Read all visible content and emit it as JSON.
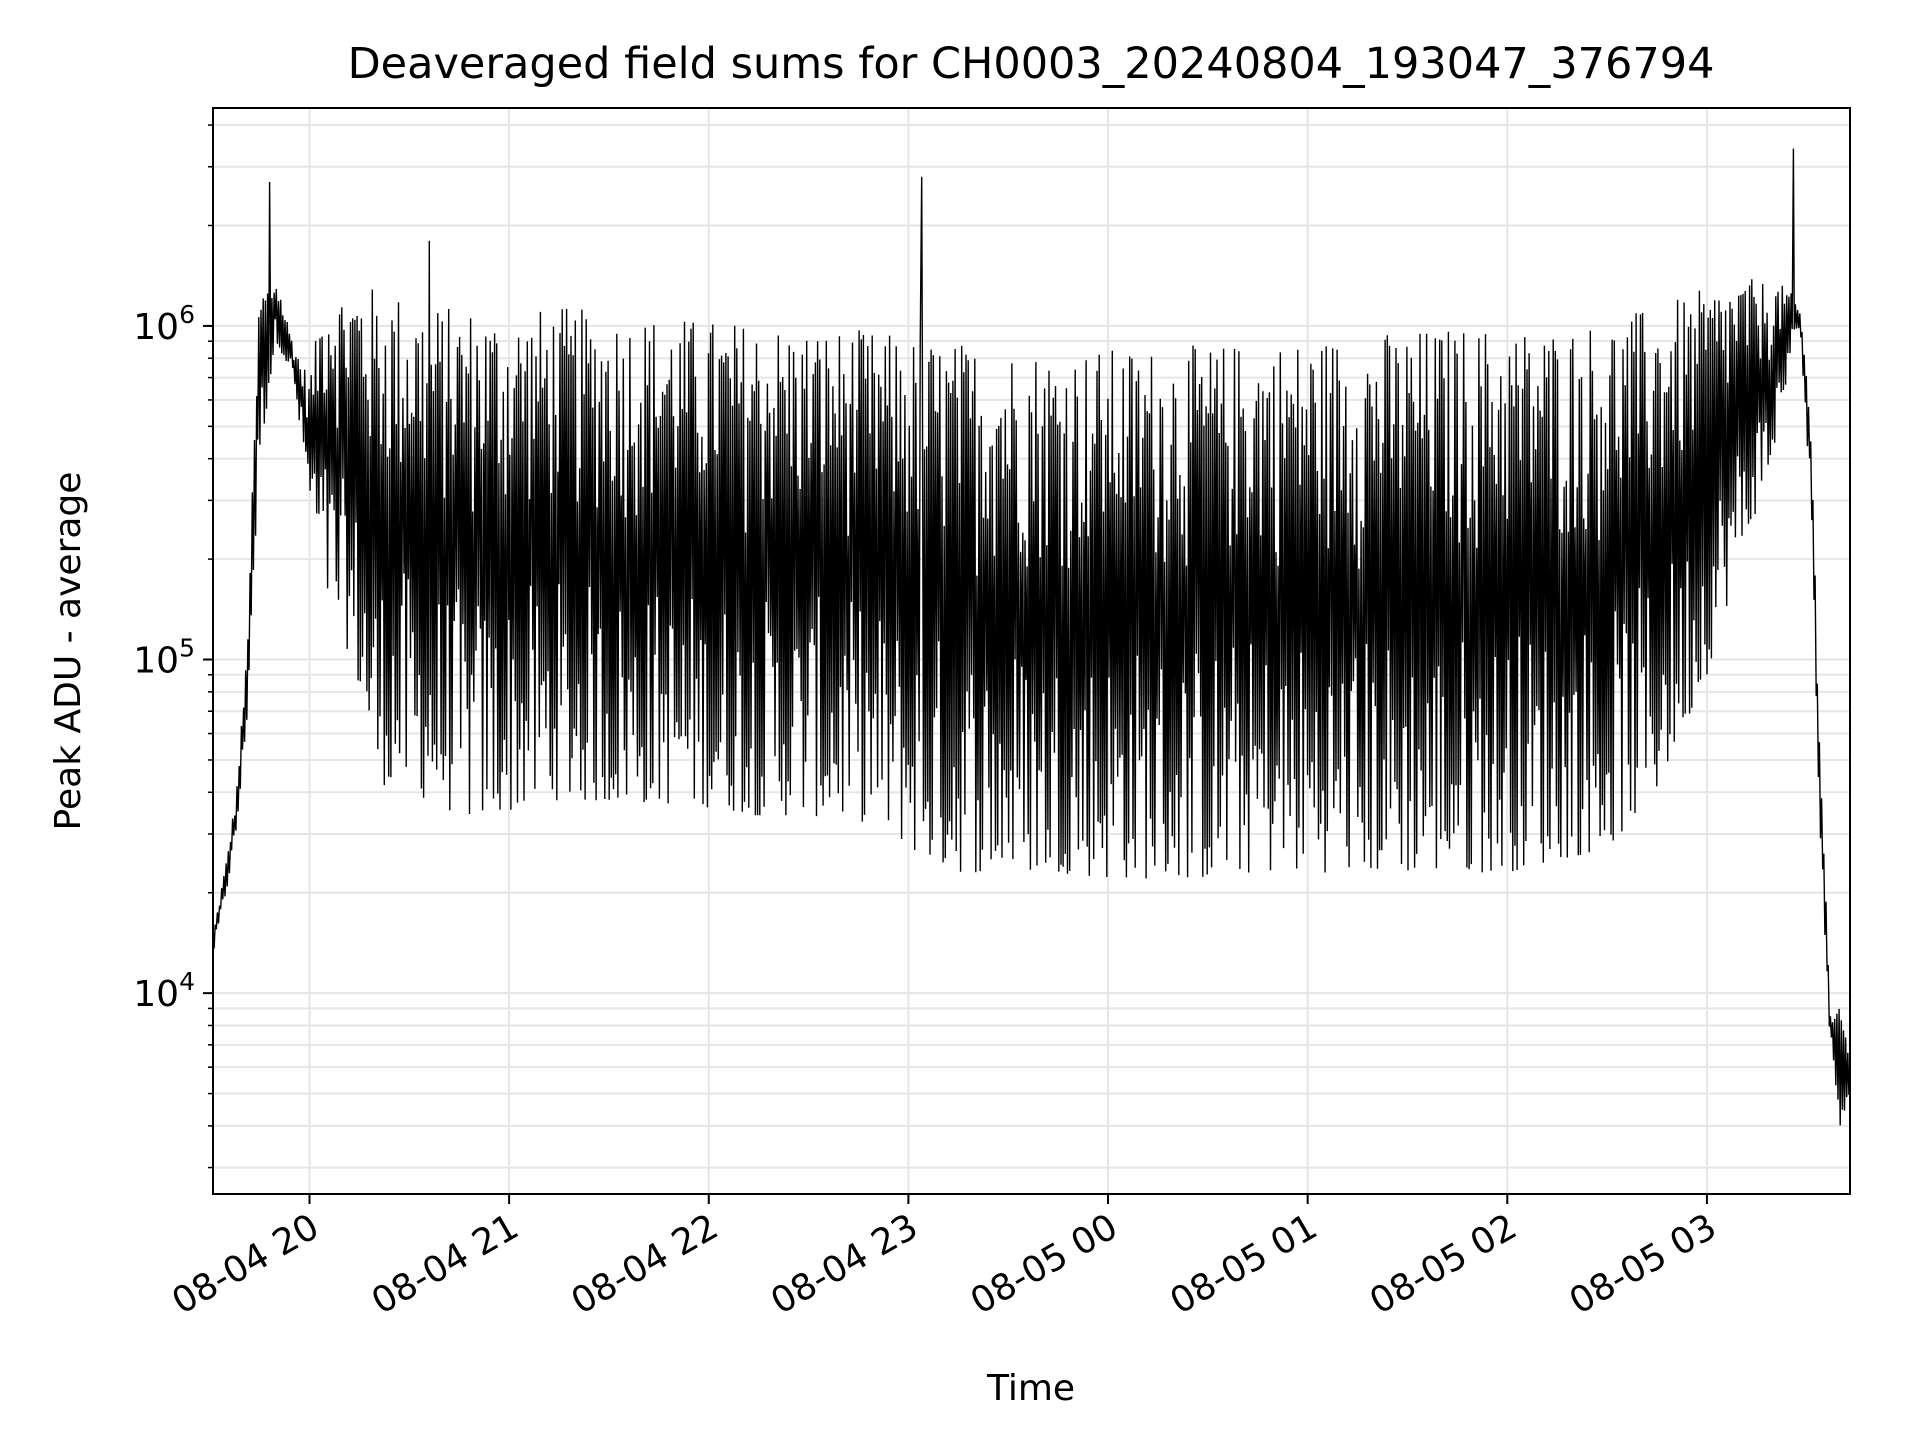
{
  "chart_data": {
    "type": "line",
    "title": "Deaveraged field sums for CH0003_20240804_193047_376794",
    "xlabel": "Time",
    "ylabel": "Peak ADU - average",
    "yscale": "log",
    "ylim": [
      2500,
      4500000
    ],
    "xlim": [
      "2024-08-04 19:31",
      "2024-08-05 03:43"
    ],
    "x_ticks": [
      {
        "value": "2024-08-04 20:00",
        "label": "08-04 20"
      },
      {
        "value": "2024-08-04 21:00",
        "label": "08-04 21"
      },
      {
        "value": "2024-08-04 22:00",
        "label": "08-04 22"
      },
      {
        "value": "2024-08-04 23:00",
        "label": "08-04 23"
      },
      {
        "value": "2024-08-05 00:00",
        "label": "08-05 00"
      },
      {
        "value": "2024-08-05 01:00",
        "label": "08-05 01"
      },
      {
        "value": "2024-08-05 02:00",
        "label": "08-05 02"
      },
      {
        "value": "2024-08-05 03:00",
        "label": "08-05 03"
      }
    ],
    "y_ticks": [
      {
        "value": 10000,
        "base": "10",
        "exp": "4"
      },
      {
        "value": 100000,
        "base": "10",
        "exp": "5"
      },
      {
        "value": 1000000,
        "base": "10",
        "exp": "6"
      }
    ],
    "grid": true,
    "line_color": "#000000",
    "series": [
      {
        "envelope": {
          "x": [
            "2024-08-04 19:31",
            "2024-08-04 19:35",
            "2024-08-04 19:38",
            "2024-08-04 19:41",
            "2024-08-04 19:45",
            "2024-08-04 19:50",
            "2024-08-04 19:55",
            "2024-08-04 20:00",
            "2024-08-04 20:05",
            "2024-08-04 20:10",
            "2024-08-04 20:15",
            "2024-08-04 20:20",
            "2024-08-04 20:25",
            "2024-08-04 20:30",
            "2024-08-04 20:35",
            "2024-08-04 20:40",
            "2024-08-04 20:45",
            "2024-08-04 20:50",
            "2024-08-04 21:00",
            "2024-08-04 21:15",
            "2024-08-04 21:30",
            "2024-08-04 21:45",
            "2024-08-04 22:00",
            "2024-08-04 22:15",
            "2024-08-04 22:30",
            "2024-08-04 22:45",
            "2024-08-04 22:55",
            "2024-08-04 23:05",
            "2024-08-04 23:15",
            "2024-08-04 23:30",
            "2024-08-04 23:45",
            "2024-08-05 00:00",
            "2024-08-05 00:15",
            "2024-08-05 00:30",
            "2024-08-05 00:45",
            "2024-08-05 01:00",
            "2024-08-05 01:15",
            "2024-08-05 01:30",
            "2024-08-05 01:45",
            "2024-08-05 02:00",
            "2024-08-05 02:15",
            "2024-08-05 02:30",
            "2024-08-05 02:45",
            "2024-08-05 03:00",
            "2024-08-05 03:10",
            "2024-08-05 03:20",
            "2024-08-05 03:25",
            "2024-08-05 03:28",
            "2024-08-05 03:31",
            "2024-08-05 03:34",
            "2024-08-05 03:37",
            "2024-08-05 03:40",
            "2024-08-05 03:43"
          ],
          "low": [
            13000,
            20000,
            30000,
            60000,
            400000,
            900000,
            700000,
            300000,
            150000,
            120000,
            80000,
            42000,
            42000,
            40000,
            38000,
            36000,
            34000,
            33000,
            35000,
            38000,
            37000,
            37000,
            36000,
            34000,
            34000,
            33000,
            30000,
            25000,
            23000,
            23000,
            23000,
            22000,
            22000,
            22000,
            23000,
            23000,
            23000,
            23000,
            23000,
            23000,
            25000,
            27000,
            40000,
            90000,
            200000,
            400000,
            800000,
            1000000,
            300000,
            30000,
            7000,
            4000,
            5000
          ],
          "high": [
            15000,
            25000,
            40000,
            100000,
            1300000,
            1400000,
            900000,
            700000,
            1400000,
            1300000,
            1400000,
            1300000,
            1300000,
            1200000,
            1200000,
            1150000,
            1150000,
            1150000,
            1100000,
            1150000,
            1100000,
            1080000,
            1050000,
            1030000,
            1000000,
            980000,
            950000,
            920000,
            900000,
            870000,
            860000,
            860000,
            870000,
            880000,
            900000,
            920000,
            950000,
            980000,
            1000000,
            1000000,
            1000000,
            1050000,
            1150000,
            1300000,
            1400000,
            1350000,
            1300000,
            1100000,
            600000,
            60000,
            9000,
            9000,
            7000
          ]
        },
        "spikes": [
          {
            "x": "2024-08-04 19:48",
            "y": 2700000
          },
          {
            "x": "2024-08-04 20:36",
            "y": 1800000
          },
          {
            "x": "2024-08-04 23:04",
            "y": 2800000
          },
          {
            "x": "2024-08-05 03:26",
            "y": 3400000
          }
        ]
      }
    ]
  }
}
